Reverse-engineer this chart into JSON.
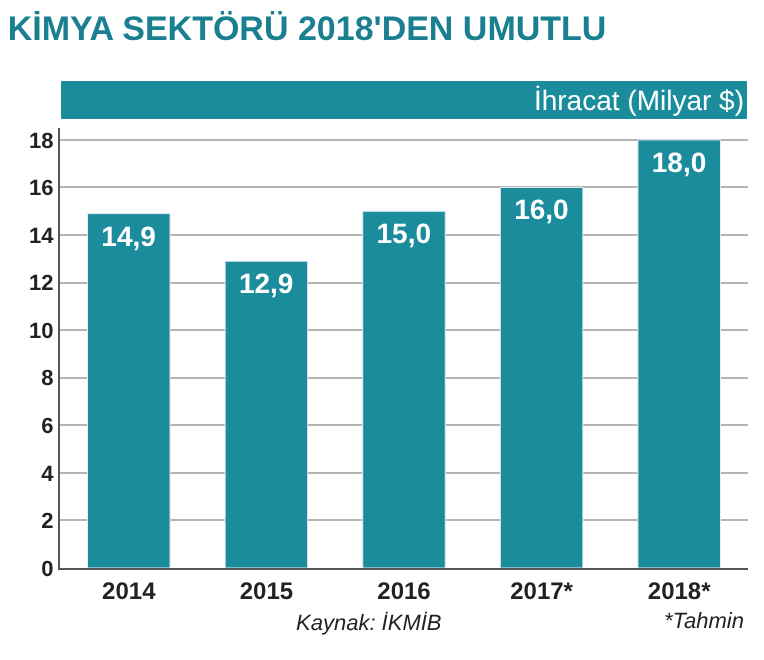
{
  "chart_data": {
    "type": "bar",
    "title": "KİMYA SEKTÖRÜ 2018'DEN UMUTLU",
    "subtitle": "İhracat (Milyar $)",
    "categories": [
      "2014",
      "2015",
      "2016",
      "2017*",
      "2018*"
    ],
    "values": [
      14.9,
      12.9,
      15.0,
      16.0,
      18.0
    ],
    "color": "#1a8c9c",
    "value_labels": [
      "14,9",
      "12,9",
      "15,0",
      "16,0",
      "18,0"
    ],
    "ylim": [
      0,
      18.5
    ],
    "yticks": [
      0,
      2,
      4,
      6,
      8,
      10,
      12,
      14,
      16,
      18
    ],
    "grid": "y",
    "legend": false,
    "annotations": [
      "Kaynak: İKMİB",
      "*Tahmin"
    ]
  }
}
